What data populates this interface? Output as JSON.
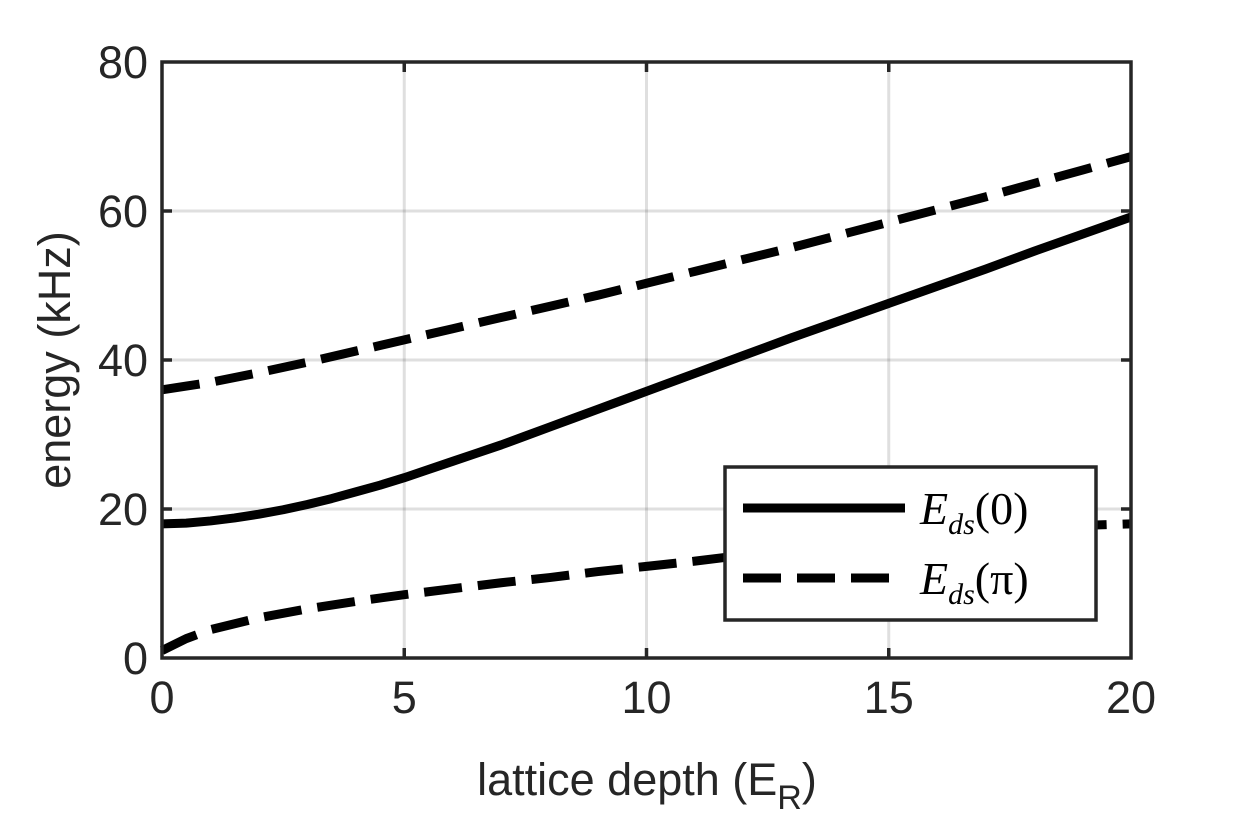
{
  "chart_data": {
    "type": "line",
    "xlabel": "lattice depth (E",
    "xlabel_sub": "R",
    "xlabel_tail": ")",
    "ylabel": "energy (kHz)",
    "xlim": [
      0,
      20
    ],
    "ylim": [
      0,
      80
    ],
    "xticks": [
      0,
      5,
      10,
      15,
      20
    ],
    "yticks": [
      0,
      20,
      40,
      60,
      80
    ],
    "x_tick_labels": [
      "0",
      "5",
      "10",
      "15",
      "20"
    ],
    "y_tick_labels": [
      "0",
      "20",
      "40",
      "60",
      "80"
    ],
    "grid": true,
    "legend_position": "bottom-right",
    "series": [
      {
        "name": "E_ds(0)",
        "legend_main": "E",
        "legend_sub": "ds",
        "legend_arg": "(0)",
        "style": "solid",
        "branches": [
          {
            "x": [
              0,
              0.5,
              1,
              1.5,
              2,
              2.5,
              3,
              3.5,
              4,
              4.5,
              5,
              5.5,
              6,
              6.5,
              7,
              7.5,
              8,
              8.5,
              9,
              9.5,
              10,
              11,
              12,
              13,
              14,
              15,
              16,
              17,
              18,
              19,
              20
            ],
            "y": [
              18,
              18.1,
              18.4,
              18.8,
              19.3,
              19.9,
              20.6,
              21.4,
              22.3,
              23.2,
              24.2,
              25.3,
              26.4,
              27.5,
              28.6,
              29.8,
              31,
              32.2,
              33.4,
              34.6,
              35.8,
              38.2,
              40.6,
              43,
              45.3,
              47.6,
              49.9,
              52.2,
              54.6,
              56.9,
              59.2
            ]
          }
        ]
      },
      {
        "name": "E_ds(π)",
        "legend_main": "E",
        "legend_sub": "ds",
        "legend_arg": "(π)",
        "style": "dashed",
        "branches": [
          {
            "x": [
              0,
              1,
              2,
              3,
              4,
              5,
              6,
              7,
              8,
              9,
              10,
              11,
              12,
              13,
              14,
              15,
              16,
              17,
              18,
              19,
              20
            ],
            "y": [
              36,
              37,
              38.3,
              39.7,
              41.2,
              42.7,
              44.2,
              45.7,
              47.2,
              48.7,
              50.3,
              51.9,
              53.5,
              55.1,
              56.8,
              58.5,
              60.2,
              61.9,
              63.7,
              65.5,
              67.3
            ]
          },
          {
            "x": [
              0,
              0.5,
              1,
              2,
              3,
              4,
              5,
              6,
              7,
              8,
              9,
              10,
              11,
              12,
              13,
              14,
              15,
              16,
              17,
              18,
              19,
              20
            ],
            "y": [
              1,
              2.6,
              3.8,
              5.4,
              6.6,
              7.6,
              8.5,
              9.3,
              10.1,
              10.8,
              11.6,
              12.3,
              13,
              13.8,
              14.5,
              15.2,
              15.9,
              16.5,
              17.1,
              17.5,
              17.8,
              18
            ]
          }
        ]
      }
    ]
  }
}
